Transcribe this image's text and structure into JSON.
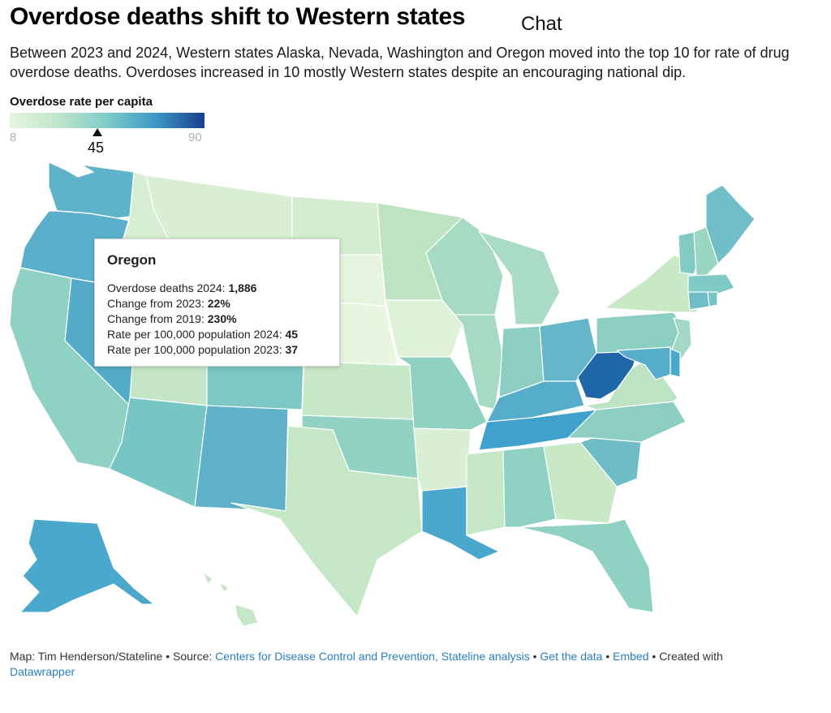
{
  "header": {
    "title": "Overdose deaths shift to Western states",
    "chat_label": "Chat",
    "description": "Between 2023 and 2024, Western states Alaska, Nevada, Washington and Oregon moved into the top 10 for rate of drug overdose deaths. Overdoses increased in 10 mostly Western states despite an encouraging national dip."
  },
  "legend": {
    "title": "Overdose rate per capita",
    "min": "8",
    "max": "90",
    "marker_value": "45",
    "colors": [
      "#e6f5df",
      "#bfe5cb",
      "#7fcbc9",
      "#3d98c7",
      "#173f8c"
    ]
  },
  "highlighted_state": "Oregon",
  "tooltip": {
    "title": "Oregon",
    "rows": [
      {
        "label": "Overdose deaths 2024: ",
        "value": "1,886"
      },
      {
        "label": "Change from 2023: ",
        "value": "22%"
      },
      {
        "label": "Change from 2019: ",
        "value": "230%"
      },
      {
        "label": "Rate per 100,000 population 2024: ",
        "value": "45"
      },
      {
        "label": "Rate per 100,000 population 2023: ",
        "value": "37"
      }
    ]
  },
  "states": [
    {
      "name": "Washington",
      "color": "#5eb2c9"
    },
    {
      "name": "Oregon",
      "color": "#5ab0cb"
    },
    {
      "name": "California",
      "color": "#8fd1c2"
    },
    {
      "name": "Nevada",
      "color": "#55acca"
    },
    {
      "name": "Idaho",
      "color": "#d6eed2"
    },
    {
      "name": "Montana",
      "color": "#d8efd4"
    },
    {
      "name": "Wyoming",
      "color": "#cceacc"
    },
    {
      "name": "Utah",
      "color": "#c4e6c6"
    },
    {
      "name": "Arizona",
      "color": "#78c5c5"
    },
    {
      "name": "New Mexico",
      "color": "#5fb1ca"
    },
    {
      "name": "Colorado",
      "color": "#7dc8c4"
    },
    {
      "name": "North Dakota",
      "color": "#d4edd1"
    },
    {
      "name": "South Dakota",
      "color": "#e6f5dd"
    },
    {
      "name": "Nebraska",
      "color": "#e8f6e0"
    },
    {
      "name": "Kansas",
      "color": "#c7e8c6"
    },
    {
      "name": "Oklahoma",
      "color": "#92d2c2"
    },
    {
      "name": "Texas",
      "color": "#c5e7c5"
    },
    {
      "name": "Minnesota",
      "color": "#bde3c1"
    },
    {
      "name": "Iowa",
      "color": "#dff2d8"
    },
    {
      "name": "Missouri",
      "color": "#90d0c1"
    },
    {
      "name": "Arkansas",
      "color": "#d8efd4"
    },
    {
      "name": "Louisiana",
      "color": "#4aa8cc"
    },
    {
      "name": "Wisconsin",
      "color": "#a6dac5"
    },
    {
      "name": "Illinois",
      "color": "#a6dac5"
    },
    {
      "name": "Michigan",
      "color": "#a9dbc5"
    },
    {
      "name": "Indiana",
      "color": "#8ccfc2"
    },
    {
      "name": "Ohio",
      "color": "#65b6c8"
    },
    {
      "name": "Kentucky",
      "color": "#55adca"
    },
    {
      "name": "Tennessee",
      "color": "#3fa1cc"
    },
    {
      "name": "Mississippi",
      "color": "#c6e7c6"
    },
    {
      "name": "Alabama",
      "color": "#8fd1c2"
    },
    {
      "name": "Georgia",
      "color": "#c8e8c6"
    },
    {
      "name": "Florida",
      "color": "#8fd1c2"
    },
    {
      "name": "South Carolina",
      "color": "#6dbcc8"
    },
    {
      "name": "North Carolina",
      "color": "#8ccfc2"
    },
    {
      "name": "Virginia",
      "color": "#bce3c2"
    },
    {
      "name": "West Virginia",
      "color": "#1f67a9"
    },
    {
      "name": "Pennsylvania",
      "color": "#8ccfc2"
    },
    {
      "name": "New York",
      "color": "#c8e8c6"
    },
    {
      "name": "Vermont",
      "color": "#82cbc3"
    },
    {
      "name": "New Hampshire",
      "color": "#9bd6c3"
    },
    {
      "name": "Maine",
      "color": "#70bec7"
    },
    {
      "name": "Massachusetts",
      "color": "#7fcac4"
    },
    {
      "name": "Connecticut",
      "color": "#6fbdc7"
    },
    {
      "name": "Rhode Island",
      "color": "#78c4c5"
    },
    {
      "name": "New Jersey",
      "color": "#a3d8c4"
    },
    {
      "name": "Delaware",
      "color": "#4aa8cc"
    },
    {
      "name": "Maryland",
      "color": "#55adca"
    },
    {
      "name": "Alaska",
      "color": "#4aa8cc"
    },
    {
      "name": "Hawaii",
      "color": "#c6e7c6"
    }
  ],
  "footer": {
    "credit": "Map: Tim Henderson/Stateline",
    "sep": " • ",
    "source_label": "Source: ",
    "source_link": "Centers for Disease Control and Prevention, Stateline analysis",
    "get_data": "Get the data",
    "embed": "Embed",
    "created_with": "Created with",
    "datawrapper": "Datawrapper"
  }
}
